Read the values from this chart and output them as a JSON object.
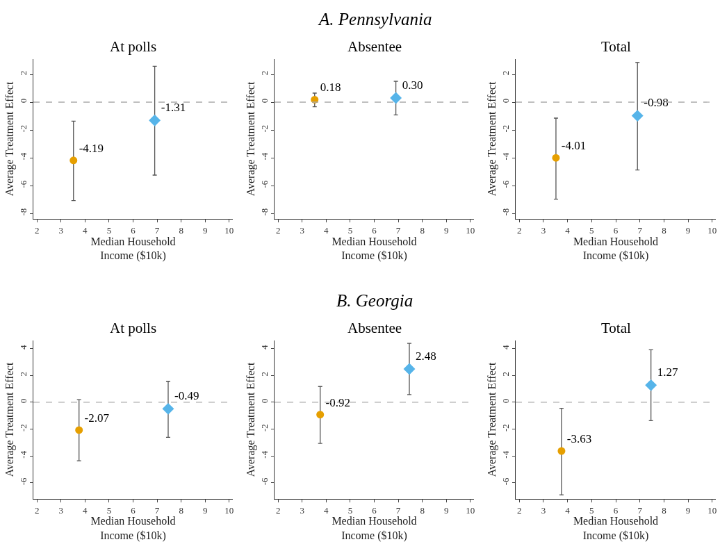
{
  "chart_data": [
    {
      "type": "scatter",
      "title": "At polls",
      "xlabel": "Median Household\nIncome ($10k)",
      "ylabel": "Average Treatment Effect",
      "xlim": [
        1.85,
        10.15
      ],
      "xticks": [
        2,
        3,
        4,
        5,
        6,
        7,
        8,
        9,
        10
      ],
      "ylim": [
        -8.4,
        3.1
      ],
      "yticks": [
        -8,
        -6,
        -4,
        -2,
        0,
        2
      ],
      "ref_lines": [
        {
          "axis": "y",
          "value": 0,
          "color": "#aaaaaa",
          "line_style": "dashed"
        }
      ],
      "series": [
        {
          "color": "#e69f00",
          "marker": "circle",
          "x": [
            3.52
          ],
          "values": [
            -4.19
          ],
          "errors": [
            [
              -7.08,
              -1.37
            ]
          ],
          "value_labels": [
            "-4.19"
          ]
        },
        {
          "color": "#56b4e9",
          "marker": "diamond",
          "x": [
            6.9
          ],
          "values": [
            -1.31
          ],
          "errors": [
            [
              -5.25,
              2.58
            ]
          ],
          "value_labels": [
            "-1.31"
          ]
        }
      ]
    },
    {
      "type": "scatter",
      "subtitle": "A. Pennsylvania",
      "title": "Absentee",
      "xlabel": "Median Household\nIncome ($10k)",
      "ylabel": "Average Treatment Effect",
      "xlim": [
        1.85,
        10.15
      ],
      "xticks": [
        2,
        3,
        4,
        5,
        6,
        7,
        8,
        9,
        10
      ],
      "ylim": [
        -8.4,
        3.1
      ],
      "yticks": [
        -8,
        -6,
        -4,
        -2,
        0,
        2
      ],
      "ref_lines": [
        {
          "axis": "y",
          "value": 0,
          "color": "#aaaaaa",
          "line_style": "dashed"
        }
      ],
      "series": [
        {
          "color": "#e69f00",
          "marker": "circle",
          "x": [
            3.52
          ],
          "values": [
            0.18
          ],
          "errors": [
            [
              -0.33,
              0.65
            ]
          ],
          "value_labels": [
            "0.18"
          ]
        },
        {
          "color": "#56b4e9",
          "marker": "diamond",
          "x": [
            6.9
          ],
          "values": [
            0.3
          ],
          "errors": [
            [
              -0.92,
              1.5
            ]
          ],
          "value_labels": [
            "0.30"
          ]
        }
      ]
    },
    {
      "type": "scatter",
      "title": "Total",
      "xlabel": "Median Household\nIncome ($10k)",
      "ylabel": "Average Treatment Effect",
      "xlim": [
        1.85,
        10.15
      ],
      "xticks": [
        2,
        3,
        4,
        5,
        6,
        7,
        8,
        9,
        10
      ],
      "ylim": [
        -8.4,
        3.1
      ],
      "yticks": [
        -8,
        -6,
        -4,
        -2,
        0,
        2
      ],
      "ref_lines": [
        {
          "axis": "y",
          "value": 0,
          "color": "#aaaaaa",
          "line_style": "dashed"
        }
      ],
      "series": [
        {
          "color": "#e69f00",
          "marker": "circle",
          "x": [
            3.52
          ],
          "values": [
            -4.01
          ],
          "errors": [
            [
              -6.98,
              -1.15
            ]
          ],
          "value_labels": [
            "-4.01"
          ]
        },
        {
          "color": "#56b4e9",
          "marker": "diamond",
          "x": [
            6.9
          ],
          "values": [
            -0.98
          ],
          "errors": [
            [
              -4.88,
              2.85
            ]
          ],
          "value_labels": [
            "-0.98"
          ]
        }
      ]
    },
    {
      "type": "scatter",
      "title": "At polls",
      "xlabel": "Median Household\nIncome ($10k)",
      "ylabel": "Average Treatment Effect",
      "xlim": [
        1.85,
        10.15
      ],
      "xticks": [
        2,
        3,
        4,
        5,
        6,
        7,
        8,
        9,
        10
      ],
      "ylim": [
        -7.2,
        4.6
      ],
      "yticks": [
        -6,
        -4,
        -2,
        0,
        2,
        4
      ],
      "ref_lines": [
        {
          "axis": "y",
          "value": 0,
          "color": "#aaaaaa",
          "line_style": "dashed"
        }
      ],
      "series": [
        {
          "color": "#e69f00",
          "marker": "circle",
          "x": [
            3.75
          ],
          "values": [
            -2.07
          ],
          "errors": [
            [
              -4.36,
              0.19
            ]
          ],
          "value_labels": [
            "-2.07"
          ]
        },
        {
          "color": "#56b4e9",
          "marker": "diamond",
          "x": [
            7.46
          ],
          "values": [
            -0.49
          ],
          "errors": [
            [
              -2.61,
              1.56
            ]
          ],
          "value_labels": [
            "-0.49"
          ]
        }
      ]
    },
    {
      "type": "scatter",
      "subtitle": "B. Georgia",
      "title": "Absentee",
      "xlabel": "Median Household\nIncome ($10k)",
      "ylabel": "Average Treatment Effect",
      "xlim": [
        1.85,
        10.15
      ],
      "xticks": [
        2,
        3,
        4,
        5,
        6,
        7,
        8,
        9,
        10
      ],
      "ylim": [
        -7.2,
        4.6
      ],
      "yticks": [
        -6,
        -4,
        -2,
        0,
        2,
        4
      ],
      "ref_lines": [
        {
          "axis": "y",
          "value": 0,
          "color": "#aaaaaa",
          "line_style": "dashed"
        }
      ],
      "series": [
        {
          "color": "#e69f00",
          "marker": "circle",
          "x": [
            3.75
          ],
          "values": [
            -0.92
          ],
          "errors": [
            [
              -3.07,
              1.17
            ]
          ],
          "value_labels": [
            "-0.92"
          ]
        },
        {
          "color": "#56b4e9",
          "marker": "diamond",
          "x": [
            7.46
          ],
          "values": [
            2.48
          ],
          "errors": [
            [
              0.57,
              4.39
            ]
          ],
          "value_labels": [
            "2.48"
          ]
        }
      ]
    },
    {
      "type": "scatter",
      "title": "Total",
      "xlabel": "Median Household\nIncome ($10k)",
      "ylabel": "Average Treatment Effect",
      "xlim": [
        1.85,
        10.15
      ],
      "xticks": [
        2,
        3,
        4,
        5,
        6,
        7,
        8,
        9,
        10
      ],
      "ylim": [
        -7.2,
        4.6
      ],
      "yticks": [
        -6,
        -4,
        -2,
        0,
        2,
        4
      ],
      "ref_lines": [
        {
          "axis": "y",
          "value": 0,
          "color": "#aaaaaa",
          "line_style": "dashed"
        }
      ],
      "series": [
        {
          "color": "#e69f00",
          "marker": "circle",
          "x": [
            3.75
          ],
          "values": [
            -3.63
          ],
          "errors": [
            [
              -6.9,
              -0.45
            ]
          ],
          "value_labels": [
            "-3.63"
          ]
        },
        {
          "color": "#56b4e9",
          "marker": "diamond",
          "x": [
            7.46
          ],
          "values": [
            1.27
          ],
          "errors": [
            [
              -1.37,
              3.91
            ]
          ],
          "value_labels": [
            "1.27"
          ]
        }
      ]
    }
  ]
}
